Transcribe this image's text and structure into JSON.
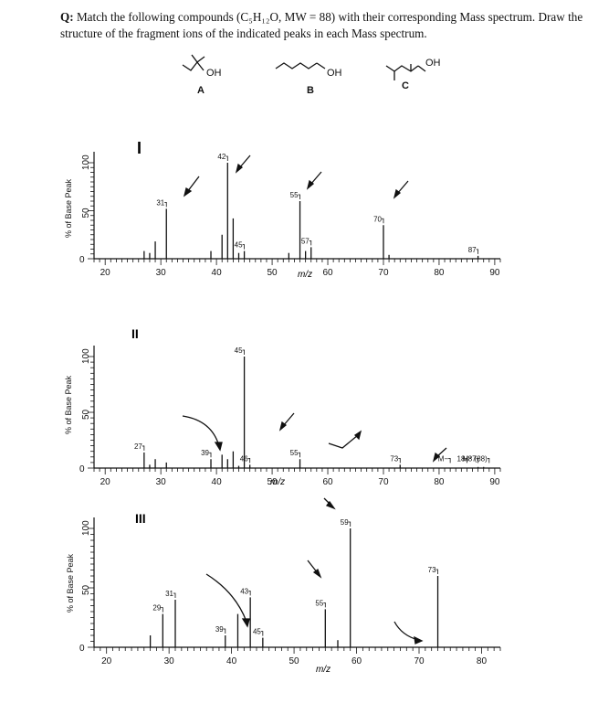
{
  "question": {
    "prefix": "Q:",
    "text": "Match the following compounds (C₅H₁₂O, MW = 88) with their corresponding Mass spectrum. Draw the structure of the fragment ions of the indicated peaks in each Mass spectrum."
  },
  "structures": [
    {
      "letter": "A",
      "oh_label": "OH"
    },
    {
      "letter": "B",
      "oh_label": "OH"
    },
    {
      "letter": "C",
      "oh_label": "OH"
    }
  ],
  "spectra": [
    {
      "roman": "I",
      "ylabel": "% of Base Peak",
      "xlabel": "m/z",
      "yticks": [
        "100",
        "50",
        "0"
      ],
      "xticks": [
        "20",
        "30",
        "40",
        "50",
        "60",
        "70",
        "80",
        "90"
      ],
      "xmin": 18,
      "xmax": 91,
      "peaks": [
        [
          27,
          8
        ],
        [
          28,
          6
        ],
        [
          29,
          18
        ],
        [
          31,
          52
        ],
        [
          39,
          8
        ],
        [
          41,
          25
        ],
        [
          42,
          100
        ],
        [
          43,
          42
        ],
        [
          44,
          6
        ],
        [
          45,
          8
        ],
        [
          53,
          6
        ],
        [
          55,
          60
        ],
        [
          56,
          8
        ],
        [
          57,
          12
        ],
        [
          70,
          35
        ],
        [
          71,
          4
        ],
        [
          87,
          3
        ]
      ],
      "labels": [
        {
          "text": "31",
          "mz": 31,
          "y": 52
        },
        {
          "text": "42",
          "mz": 42,
          "y": 100
        },
        {
          "text": "55",
          "mz": 55,
          "y": 60
        },
        {
          "text": "57",
          "mz": 57,
          "y": 12
        },
        {
          "text": "45",
          "mz": 45,
          "y": 8
        },
        {
          "text": "70",
          "mz": 70,
          "y": 35
        },
        {
          "text": "87",
          "mz": 87,
          "y": 3
        }
      ]
    },
    {
      "roman": "II",
      "ylabel": "% of Base Peak",
      "xlabel": "m/z",
      "yticks": [
        "100",
        "50",
        "0"
      ],
      "xticks": [
        "20",
        "30",
        "40",
        "50",
        "60",
        "70",
        "80",
        "90"
      ],
      "xmin": 18,
      "xmax": 91,
      "peaks": [
        [
          27,
          14
        ],
        [
          28,
          3
        ],
        [
          29,
          8
        ],
        [
          31,
          5
        ],
        [
          39,
          8
        ],
        [
          41,
          12
        ],
        [
          42,
          8
        ],
        [
          43,
          15
        ],
        [
          44,
          2
        ],
        [
          45,
          100
        ],
        [
          46,
          3
        ],
        [
          55,
          8
        ],
        [
          73,
          3
        ],
        [
          87,
          1
        ],
        [
          88,
          1
        ]
      ],
      "labels": [
        {
          "text": "27",
          "mz": 27,
          "y": 14
        },
        {
          "text": "39",
          "mz": 39,
          "y": 8
        },
        {
          "text": "45",
          "mz": 45,
          "y": 100
        },
        {
          "text": "46",
          "mz": 46,
          "y": 3
        },
        {
          "text": "55",
          "mz": 55,
          "y": 8
        },
        {
          "text": "73",
          "mz": 73,
          "y": 3
        },
        {
          "text": "M−",
          "mz": 82,
          "y": 3
        },
        {
          "text": "18",
          "mz": 85,
          "y": 3
        },
        {
          "text": "87",
          "mz": 87,
          "y": 3
        },
        {
          "text": "M⁺ (88)",
          "mz": 89,
          "y": 3
        }
      ]
    },
    {
      "roman": "III",
      "ylabel": "% of Base Peak",
      "xlabel": "m/z",
      "yticks": [
        "100",
        "50",
        "0"
      ],
      "xticks": [
        "20",
        "30",
        "40",
        "50",
        "60",
        "70",
        "80"
      ],
      "xmin": 18,
      "xmax": 83,
      "peaks": [
        [
          27,
          10
        ],
        [
          29,
          28
        ],
        [
          31,
          40
        ],
        [
          39,
          10
        ],
        [
          41,
          28
        ],
        [
          43,
          42
        ],
        [
          45,
          8
        ],
        [
          55,
          32
        ],
        [
          57,
          6
        ],
        [
          59,
          100
        ],
        [
          73,
          60
        ]
      ],
      "labels": [
        {
          "text": "29",
          "mz": 29,
          "y": 28
        },
        {
          "text": "31",
          "mz": 31,
          "y": 40
        },
        {
          "text": "39",
          "mz": 39,
          "y": 10
        },
        {
          "text": "43",
          "mz": 43,
          "y": 42
        },
        {
          "text": "45",
          "mz": 45,
          "y": 8
        },
        {
          "text": "55",
          "mz": 55,
          "y": 32
        },
        {
          "text": "59",
          "mz": 59,
          "y": 100
        },
        {
          "text": "73",
          "mz": 73,
          "y": 60
        }
      ]
    }
  ]
}
